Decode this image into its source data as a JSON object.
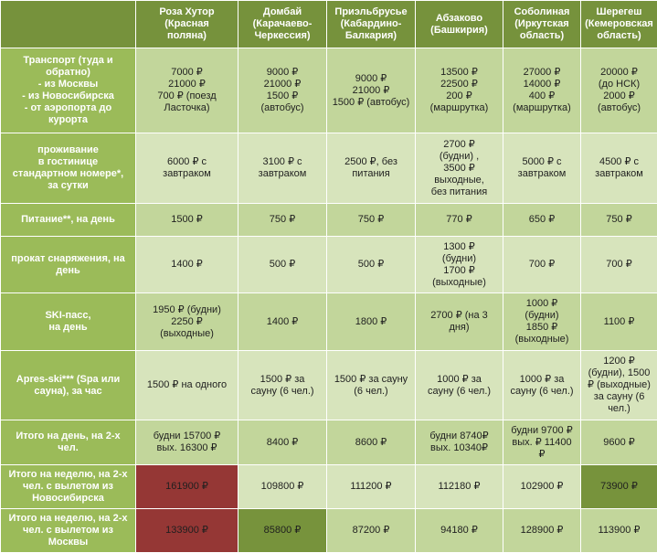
{
  "colors": {
    "header_bg": "#76923c",
    "row_header_bg": "#9bbb59",
    "cell_bg_a": "#c2d69b",
    "cell_bg_b": "#d7e4bc",
    "highlight_expensive": "#953735",
    "highlight_cheapest": "#77933c"
  },
  "columns": [
    "Роза Хутор\n(Красная\nполяна)",
    "Домбай\n(Карачаево-\nЧеркессия)",
    "Приэльбрусье\n(Кабардино-\nБалкария)",
    "Абзаково\n(Башкирия)",
    "Соболиная\n(Иркутская\nобласть)",
    "Шерегеш\n(Кемеровская\nобласть)"
  ],
  "rows": [
    {
      "label": "Транспорт (туда и\nобратно)\n- из Москвы\n- из Новосибирска\n- от аэропорта до\nкурорта",
      "cells": [
        "7000 ₽\n21000 ₽\n700 ₽ (поезд\nЛасточка)",
        "9000 ₽\n21000 ₽\n1500 ₽\n(автобус)",
        "9000 ₽\n21000 ₽\n1500 ₽ (автобус)",
        "13500 ₽\n22500 ₽\n200 ₽\n(маршрутка)",
        "27000 ₽\n14000 ₽\n400 ₽\n(маршрутка)",
        "20000 ₽\n(до НСК)\n2000 ₽\n(автобус)"
      ]
    },
    {
      "label": "проживание\nв гостинице\nстандартном номере*,\nза сутки",
      "cells": [
        "6000 ₽ с\nзавтраком",
        "3100 ₽ с\nзавтраком",
        "2500 ₽, без\nпитания",
        "2700 ₽\n(будни) ,\n3500 ₽\nвыходные,\nбез питания",
        "5000 ₽ с\nзавтраком",
        "4500 ₽ с\nзавтраком"
      ]
    },
    {
      "label": "Питание**, на день",
      "cells": [
        "1500 ₽",
        "750 ₽",
        "750 ₽",
        "770 ₽",
        "650 ₽",
        "750 ₽"
      ]
    },
    {
      "label": "прокат снаряжения, на\nдень",
      "cells": [
        "1400 ₽",
        "500 ₽",
        "500 ₽",
        "1300 ₽\n(будни)\n1700 ₽\n(выходные)",
        "700 ₽",
        "700 ₽"
      ]
    },
    {
      "label": "SKI-пасс,\nна день",
      "cells": [
        "1950 ₽ (будни)\n2250 ₽\n(выходные)",
        "1400 ₽",
        "1800 ₽",
        "2700 ₽ (на 3\nдня)",
        "1000 ₽\n(будни)\n1850 ₽\n(выходные)",
        "1100 ₽"
      ]
    },
    {
      "label": "Apres-ski*** (Spa или\nсауна), за час",
      "cells": [
        "1500 ₽ на одного",
        "1500 ₽ за\nсауну (6 чел.)",
        "1500 ₽ за сауну\n(6 чел.)",
        "1000 ₽ за\nсауну (6 чел.)",
        "1000 ₽ за\nсауну (6 чел.)",
        "1200 ₽\n(будни), 1500\n₽ (выходные)\nза сауну (6\nчел.)"
      ]
    },
    {
      "label": "Итого на день, на 2-х\nчел.",
      "cells": [
        "будни  15700 ₽\nвых. 16300 ₽",
        "8400 ₽",
        "8600 ₽",
        "будни 8740₽\nвых. 10340₽",
        "будни 9700 ₽\nвых. ₽ 11400\n₽",
        "9600 ₽"
      ]
    },
    {
      "label": "Итого на неделю, на 2-х\nчел. с вылетом из\nНовосибирска",
      "cells": [
        "161900 ₽",
        "109800 ₽",
        "111200 ₽",
        "112180 ₽",
        "102900 ₽",
        "73900 ₽"
      ]
    },
    {
      "label": "Итого на неделю, на 2-х\nчел. с вылетом из\nМосквы",
      "cells": [
        "133900 ₽",
        "85800 ₽",
        "87200 ₽",
        "94180 ₽",
        "128900 ₽",
        "113900 ₽"
      ]
    }
  ]
}
